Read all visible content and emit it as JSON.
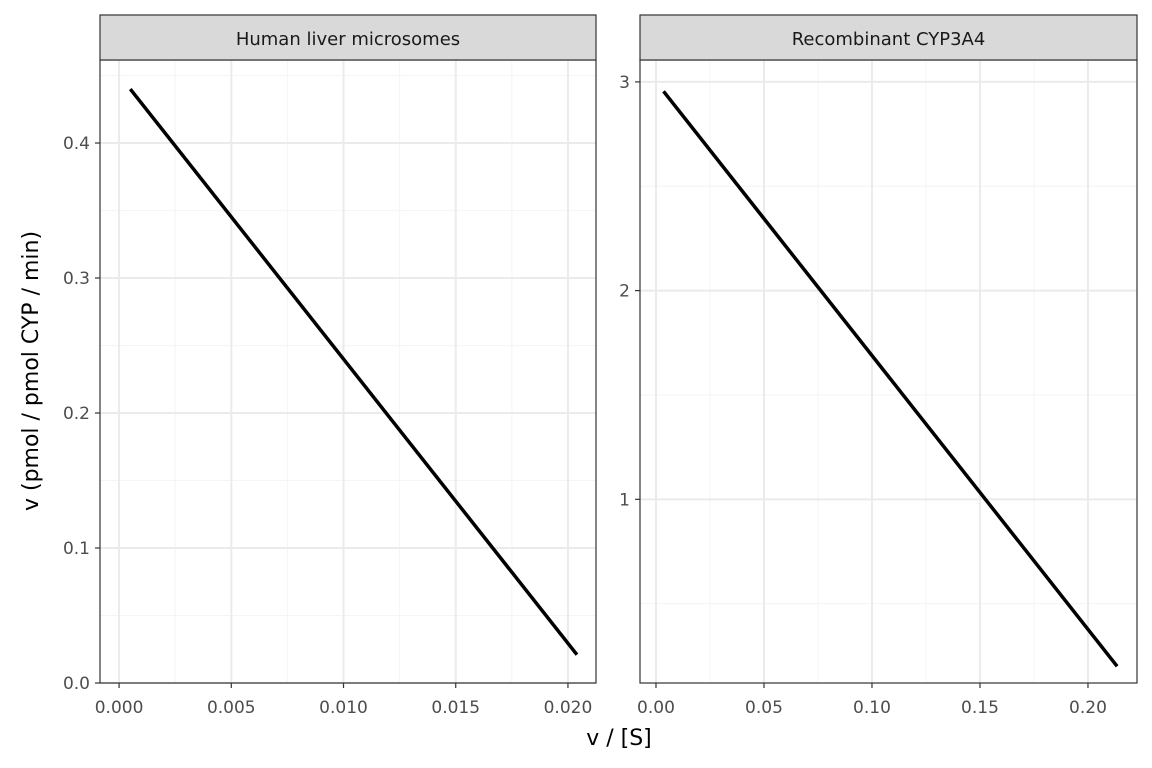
{
  "chart_data": {
    "type": "line",
    "xlabel": "v / [S]",
    "ylabel": "v (pmol / pmol CYP / min)",
    "grid": true,
    "colors": {
      "line": "#000000",
      "strip_fill": "#d9d9d9",
      "panel_border": "#333333",
      "grid_major": "#ebebeb",
      "grid_minor": "#f5f5f5",
      "tick_text": "#4d4d4d"
    },
    "panels": [
      {
        "title": "Human liver microsomes",
        "xlim": [
          -0.00085,
          0.02125
        ],
        "ylim": [
          0.0,
          0.4615
        ],
        "xticks": [
          0.0,
          0.005,
          0.01,
          0.015,
          0.02
        ],
        "xtick_labels": [
          "0.000",
          "0.005",
          "0.010",
          "0.015",
          "0.020"
        ],
        "yticks": [
          0.0,
          0.1,
          0.2,
          0.3,
          0.4
        ],
        "ytick_labels": [
          "0.0",
          "0.1",
          "0.2",
          "0.3",
          "0.4"
        ],
        "series": [
          {
            "x": [
              0.0005,
              0.0204
            ],
            "y": [
              0.44,
              0.021
            ]
          }
        ]
      },
      {
        "title": "Recombinant CYP3A4",
        "xlim": [
          -0.0074,
          0.2227
        ],
        "ylim": [
          0.12,
          3.105
        ],
        "xticks": [
          0.0,
          0.05,
          0.1,
          0.15,
          0.2
        ],
        "xtick_labels": [
          "0.00",
          "0.05",
          "0.10",
          "0.15",
          "0.20"
        ],
        "yticks": [
          1,
          2,
          3
        ],
        "ytick_labels": [
          "1",
          "2",
          "3"
        ],
        "series": [
          {
            "x": [
              0.0035,
              0.2135
            ],
            "y": [
              2.955,
              0.2
            ]
          }
        ]
      }
    ]
  }
}
